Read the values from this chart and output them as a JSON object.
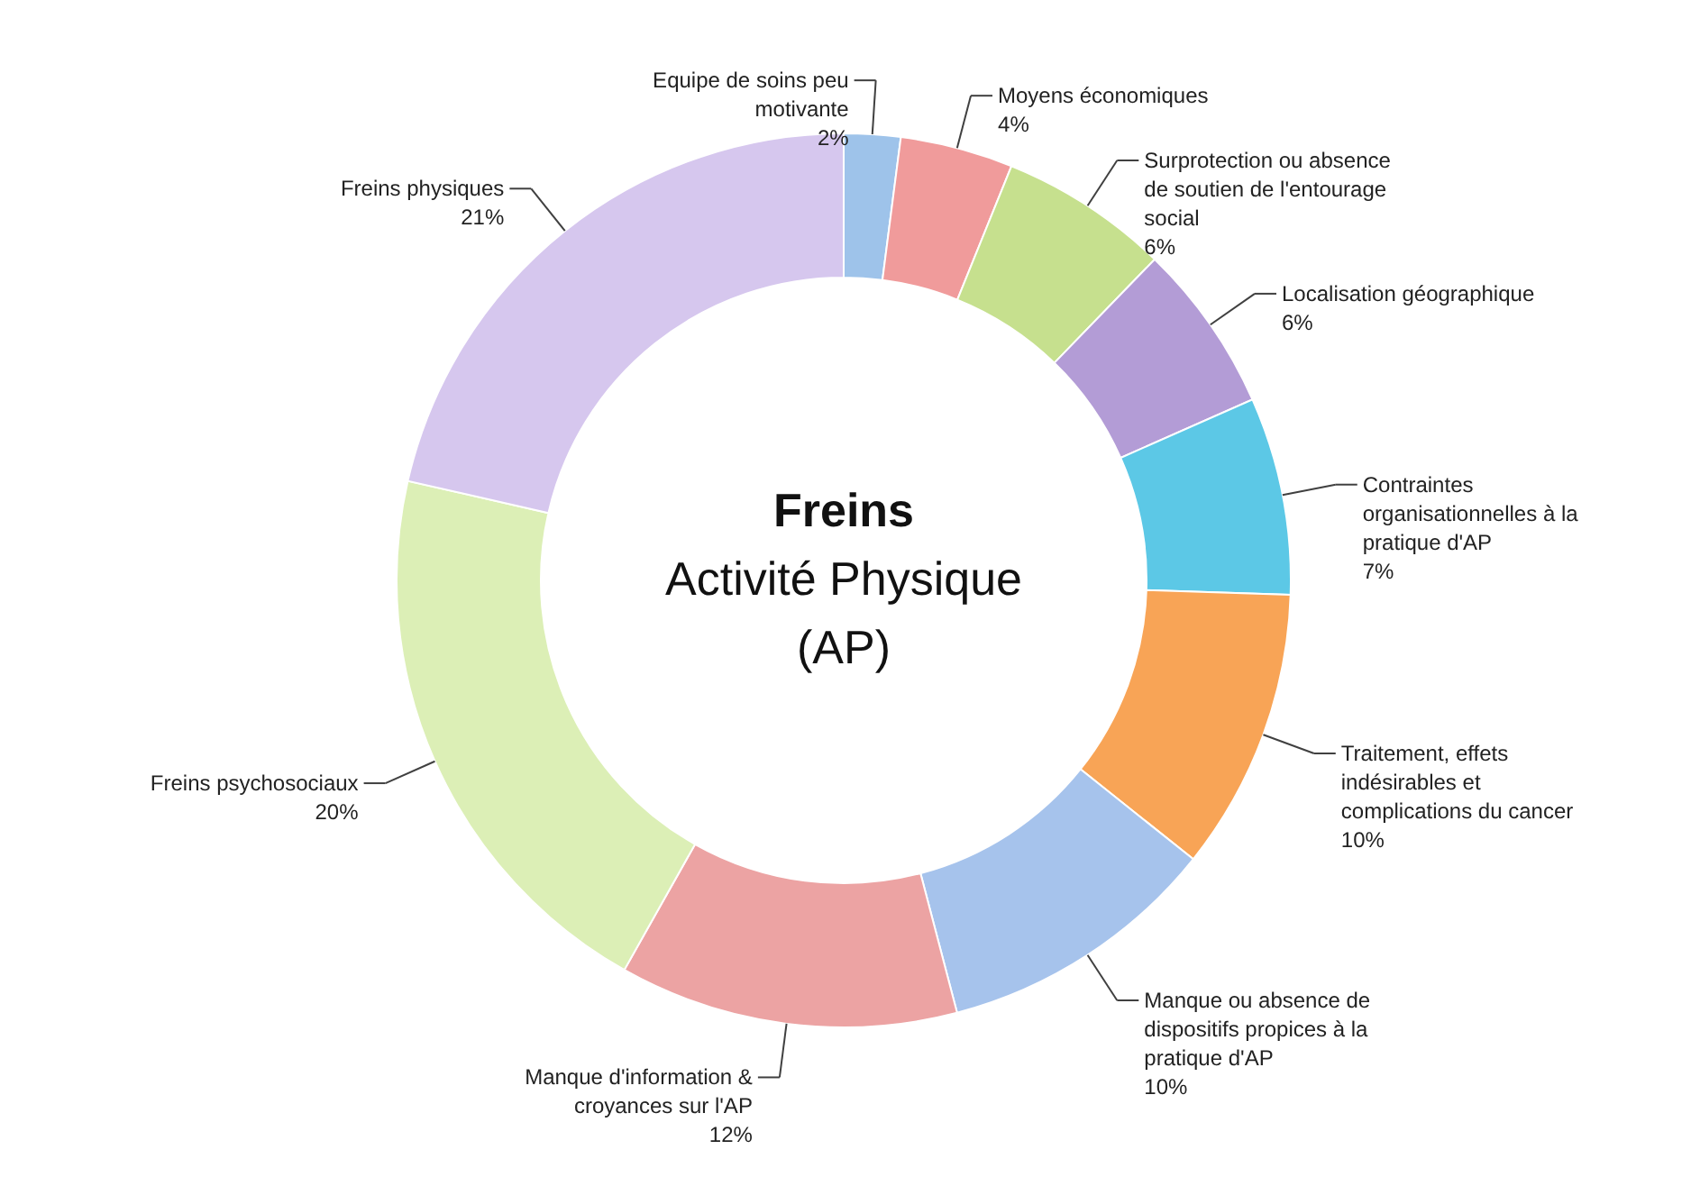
{
  "chart_data": {
    "type": "donut",
    "title": "Freins",
    "subtitle": "Activité Physique (AP)",
    "categories": [
      "Equipe de soins peu motivante",
      "Moyens économiques",
      "Surprotection ou absence de soutien de l'entourage social",
      "Localisation géographique",
      "Contraintes organisationnelles à la pratique d'AP",
      "Traitement, effets indésirables et complications du cancer",
      "Manque ou absence de dispositifs propices à la pratique d'AP",
      "Manque d'information & croyances sur l'AP",
      "Freins psychosociaux",
      "Freins physiques"
    ],
    "values": [
      2,
      4,
      6,
      6,
      7,
      10,
      10,
      12,
      20,
      21
    ],
    "value_labels": [
      "2%",
      "4%",
      "6%",
      "6%",
      "7%",
      "10%",
      "10%",
      "12%",
      "20%",
      "21%"
    ],
    "colors": [
      "#9ec3ea",
      "#f09b9b",
      "#c6e08e",
      "#b39cd6",
      "#5cc8e6",
      "#f8a456",
      "#a6c3ec",
      "#eca3a3",
      "#dcefb6",
      "#d6c7ee"
    ]
  }
}
